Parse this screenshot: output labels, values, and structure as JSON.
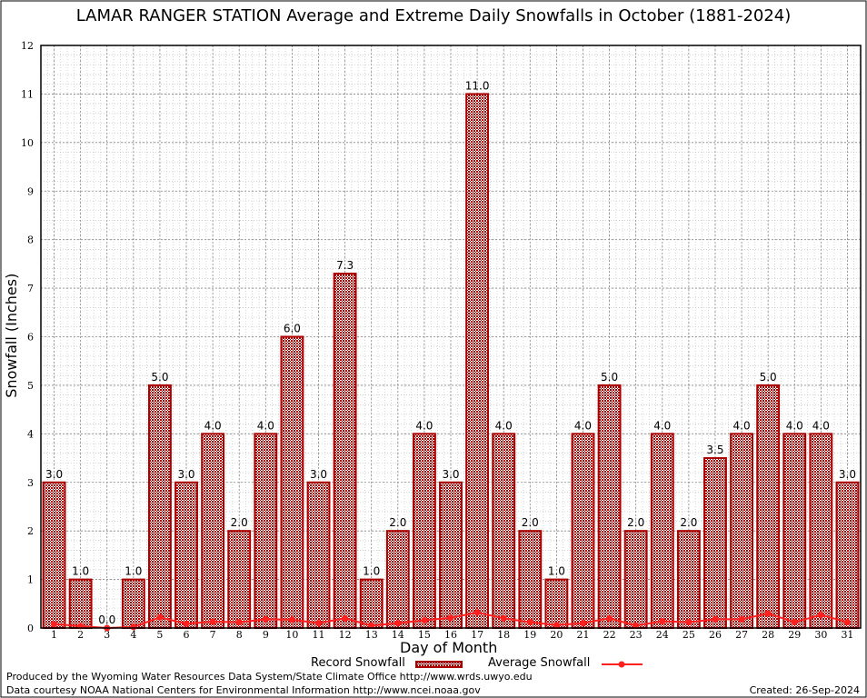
{
  "chart_data": {
    "type": "bar",
    "title": "LAMAR RANGER STATION Average and Extreme Daily Snowfalls in October (1881-2024)",
    "xlabel": "Day of Month",
    "ylabel": "Snowfall (Inches)",
    "ylim": [
      0,
      12
    ],
    "yticks": [
      "0",
      "1",
      "2",
      "3",
      "4",
      "5",
      "6",
      "7",
      "8",
      "9",
      "10",
      "11",
      "12"
    ],
    "grid": true,
    "legend_placement": "bottom",
    "categories": [
      "1",
      "2",
      "3",
      "4",
      "5",
      "6",
      "7",
      "8",
      "9",
      "10",
      "11",
      "12",
      "13",
      "14",
      "15",
      "16",
      "17",
      "18",
      "19",
      "20",
      "21",
      "22",
      "23",
      "24",
      "25",
      "26",
      "27",
      "28",
      "29",
      "30",
      "31"
    ],
    "series": [
      {
        "name": "Record Snowfall",
        "type": "bar",
        "color": "#aa0000",
        "values": [
          3.0,
          1.0,
          0.0,
          1.0,
          5.0,
          3.0,
          4.0,
          2.0,
          4.0,
          6.0,
          3.0,
          7.3,
          1.0,
          2.0,
          4.0,
          3.0,
          11.0,
          4.0,
          2.0,
          1.0,
          4.0,
          5.0,
          2.0,
          4.0,
          2.0,
          3.5,
          4.0,
          5.0,
          4.0,
          4.0,
          3.0
        ],
        "labels": [
          "3.0",
          "1.0",
          "0.0",
          "1.0",
          "5.0",
          "3.0",
          "4.0",
          "2.0",
          "4.0",
          "6.0",
          "3.0",
          "7.3",
          "1.0",
          "2.0",
          "4.0",
          "3.0",
          "11.0",
          "4.0",
          "2.0",
          "1.0",
          "4.0",
          "5.0",
          "2.0",
          "4.0",
          "2.0",
          "3.5",
          "4.0",
          "5.0",
          "4.0",
          "4.0",
          "3.0"
        ]
      },
      {
        "name": "Average Snowfall",
        "type": "line",
        "color": "#ff2020",
        "values": [
          0.08,
          0.04,
          0.0,
          0.02,
          0.22,
          0.09,
          0.13,
          0.12,
          0.18,
          0.17,
          0.1,
          0.2,
          0.05,
          0.1,
          0.16,
          0.21,
          0.32,
          0.2,
          0.12,
          0.06,
          0.1,
          0.2,
          0.05,
          0.14,
          0.12,
          0.18,
          0.18,
          0.3,
          0.12,
          0.27,
          0.12
        ]
      }
    ]
  },
  "footer": {
    "produced": "Produced by the Wyoming Water Resources Data System/State Climate Office http://www.wrds.uwyo.edu",
    "courtesy": "Data courtesy NOAA National Centers for Environmental Information http://www.ncei.noaa.gov",
    "created": "Created:  26-Sep-2024"
  }
}
